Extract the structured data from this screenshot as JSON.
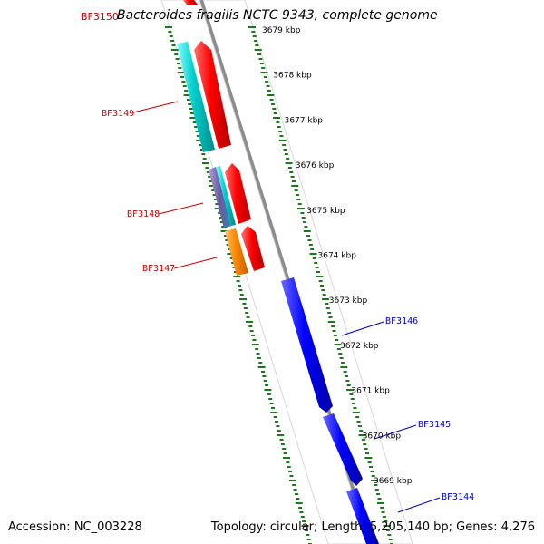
{
  "title": "Bacteroides fragilis NCTC 9343, complete genome",
  "title_tag": "BF3150",
  "footer": {
    "accession": "Accession: NC_003228",
    "summary": "Topology: circular; Length: 5,205,140 bp; Genes: 4,276"
  },
  "ticks": [
    "3679 kbp",
    "3678 kbp",
    "3677 kbp",
    "3676 kbp",
    "3675 kbp",
    "3674 kbp",
    "3673 kbp",
    "3672 kbp",
    "3671 kbp",
    "3670 kbp",
    "3669 kbp"
  ],
  "genes_left": [
    {
      "label": "BF3149",
      "color": "#cc0000"
    },
    {
      "label": "BF3148",
      "color": "#cc0000"
    },
    {
      "label": "BF3147",
      "color": "#cc0000"
    }
  ],
  "genes_right": [
    {
      "label": "BF3146",
      "color": "#0000cc"
    },
    {
      "label": "BF3145",
      "color": "#0000cc"
    },
    {
      "label": "BF3144",
      "color": "#0000cc"
    }
  ],
  "colors": {
    "forward_gene": "#ff0000",
    "reverse_gene": "#0000ff",
    "cyan_feature": "#00cccc",
    "orange_feature": "#ff8800",
    "purple_feature": "#7a6aa8",
    "backbone": "#8c8c8c",
    "tick_marks": "#1a7a1a"
  }
}
